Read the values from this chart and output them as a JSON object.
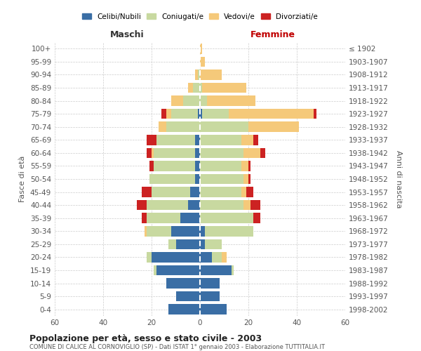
{
  "age_groups": [
    "0-4",
    "5-9",
    "10-14",
    "15-19",
    "20-24",
    "25-29",
    "30-34",
    "35-39",
    "40-44",
    "45-49",
    "50-54",
    "55-59",
    "60-64",
    "65-69",
    "70-74",
    "75-79",
    "80-84",
    "85-89",
    "90-94",
    "95-99",
    "100+"
  ],
  "birth_years": [
    "1998-2002",
    "1993-1997",
    "1988-1992",
    "1983-1987",
    "1978-1982",
    "1973-1977",
    "1968-1972",
    "1963-1967",
    "1958-1962",
    "1953-1957",
    "1948-1952",
    "1943-1947",
    "1938-1942",
    "1933-1937",
    "1928-1932",
    "1923-1927",
    "1918-1922",
    "1913-1917",
    "1908-1912",
    "1903-1907",
    "≤ 1902"
  ],
  "male": {
    "celibi": [
      13,
      10,
      14,
      18,
      20,
      10,
      12,
      8,
      5,
      4,
      2,
      2,
      2,
      2,
      0,
      1,
      0,
      0,
      0,
      0,
      0
    ],
    "coniugati": [
      0,
      0,
      0,
      1,
      2,
      3,
      10,
      14,
      17,
      16,
      19,
      17,
      17,
      16,
      14,
      11,
      7,
      3,
      1,
      0,
      0
    ],
    "vedovi": [
      0,
      0,
      0,
      0,
      0,
      0,
      1,
      0,
      0,
      0,
      0,
      0,
      1,
      0,
      3,
      2,
      5,
      2,
      1,
      0,
      0
    ],
    "divorziati": [
      0,
      0,
      0,
      0,
      0,
      0,
      0,
      2,
      4,
      4,
      0,
      2,
      2,
      4,
      0,
      2,
      0,
      0,
      0,
      0,
      0
    ]
  },
  "female": {
    "nubili": [
      11,
      8,
      8,
      13,
      5,
      2,
      2,
      0,
      0,
      0,
      0,
      0,
      0,
      0,
      0,
      1,
      0,
      0,
      0,
      0,
      0
    ],
    "coniugate": [
      0,
      0,
      0,
      1,
      4,
      7,
      20,
      22,
      18,
      17,
      18,
      17,
      18,
      17,
      20,
      11,
      3,
      1,
      0,
      0,
      0
    ],
    "vedove": [
      0,
      0,
      0,
      0,
      2,
      0,
      0,
      0,
      3,
      2,
      2,
      3,
      7,
      5,
      21,
      35,
      20,
      18,
      9,
      2,
      1
    ],
    "divorziate": [
      0,
      0,
      0,
      0,
      0,
      0,
      0,
      3,
      4,
      3,
      1,
      1,
      2,
      2,
      0,
      1,
      0,
      0,
      0,
      0,
      0
    ]
  },
  "colors": {
    "celibi_nubili": "#3a6ea5",
    "coniugati": "#c8d9a0",
    "vedovi": "#f5c97a",
    "divorziati": "#cc2222"
  },
  "xlim": 60,
  "title": "Popolazione per età, sesso e stato civile - 2003",
  "subtitle": "COMUNE DI CALICE AL CORNOVIGLIO (SP) - Dati ISTAT 1° gennaio 2003 - Elaborazione TUTTITALIA.IT",
  "ylabel": "Fasce di età",
  "ylabel_right": "Anni di nascita",
  "xlabel_left": "Maschi",
  "xlabel_right": "Femmine",
  "legend_labels": [
    "Celibi/Nubili",
    "Coniugati/e",
    "Vedovi/e",
    "Divorziati/e"
  ],
  "background_color": "#ffffff",
  "grid_color": "#cccccc"
}
